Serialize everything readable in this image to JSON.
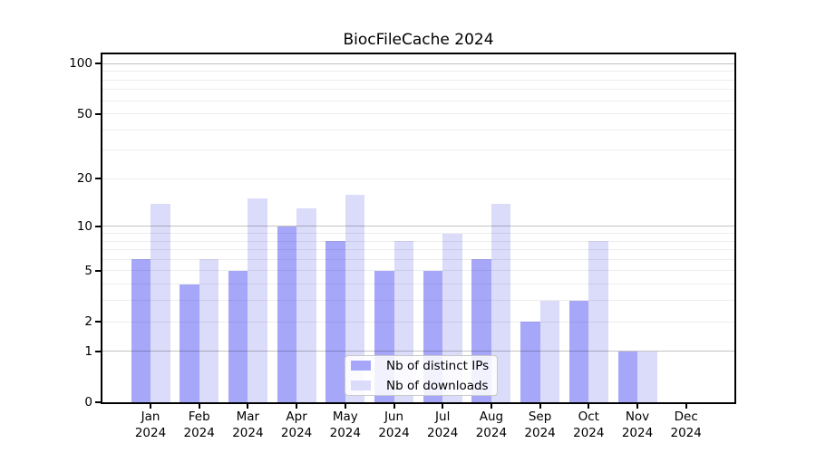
{
  "chart_data": {
    "type": "bar",
    "title": "BiocFileCache 2024",
    "categories": [
      "Jan",
      "Feb",
      "Mar",
      "Apr",
      "May",
      "Jun",
      "Jul",
      "Aug",
      "Sep",
      "Oct",
      "Nov",
      "Dec"
    ],
    "x_tick_sub_label": "2024",
    "series": [
      {
        "name": "Nb of distinct IPs",
        "color": "#a7a7fa",
        "values": [
          6,
          4,
          5,
          10,
          8,
          5,
          5,
          6,
          2,
          3,
          1,
          0
        ]
      },
      {
        "name": "Nb of downloads",
        "color": "#dbdbfa",
        "values": [
          14,
          6,
          15,
          13,
          16,
          8,
          9,
          14,
          3,
          8,
          1,
          0
        ]
      }
    ],
    "y_axis": {
      "scale": "log1p",
      "tick_values": [
        0,
        1,
        2,
        5,
        10,
        20,
        50,
        100
      ],
      "range": [
        0,
        115
      ]
    },
    "grid": {
      "major_values": [
        1,
        10,
        100
      ],
      "minor_values": [
        2,
        3,
        4,
        5,
        6,
        7,
        8,
        9,
        20,
        30,
        40,
        50,
        60,
        70,
        80,
        90
      ],
      "major_color": "#c3c3c3",
      "minor_color": "#ededed"
    },
    "legend": {
      "position": "inside-bottom-center"
    },
    "colors": {
      "background": "#ffffff",
      "axis": "#000000",
      "text": "#000000"
    }
  }
}
